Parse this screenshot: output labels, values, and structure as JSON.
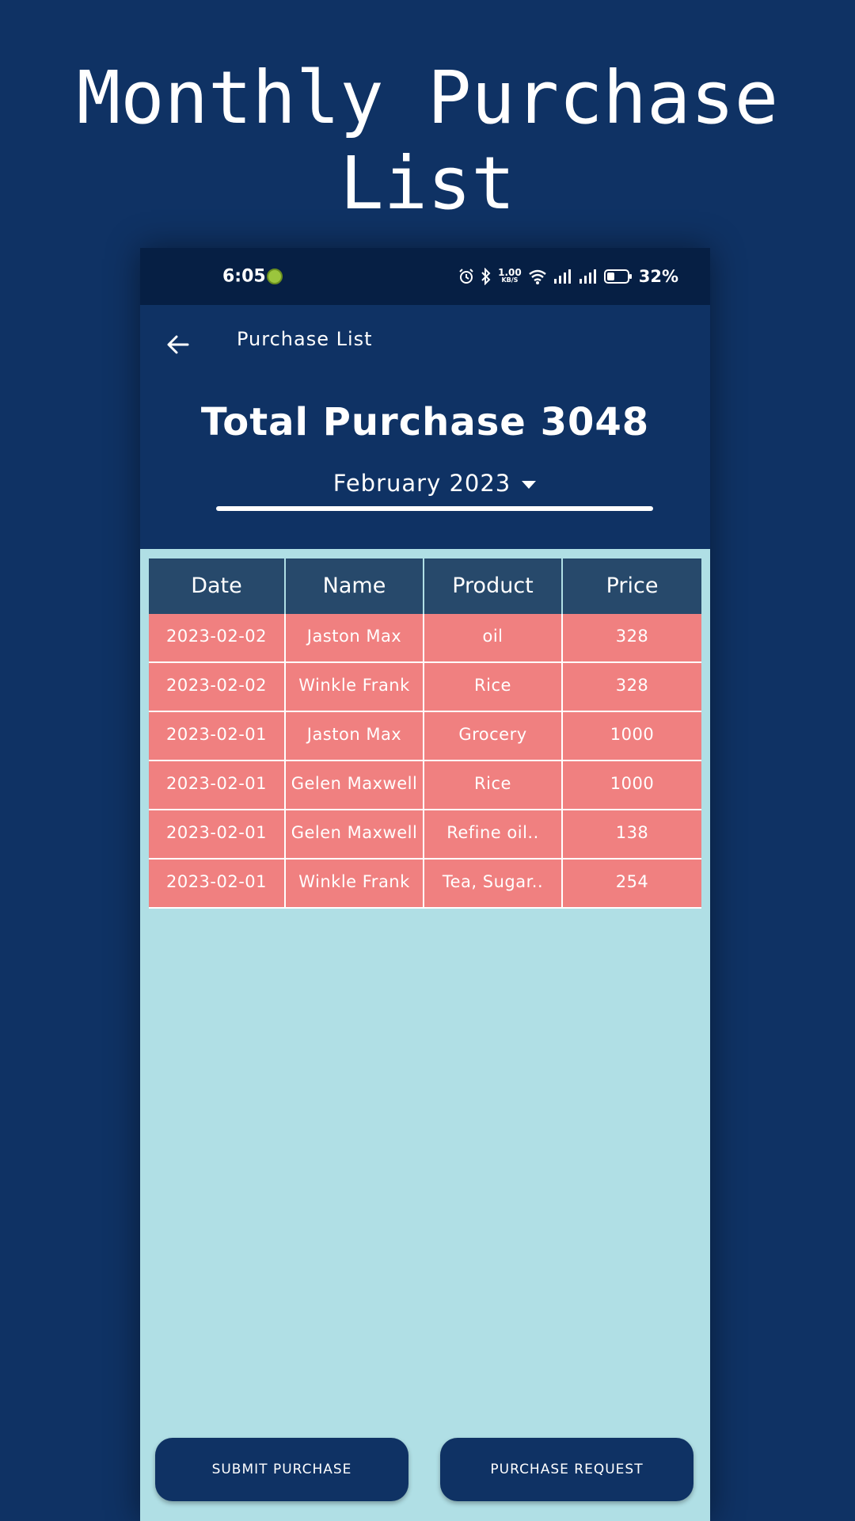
{
  "promo": {
    "title_line1": "Monthly Purchase",
    "title_line2": "List"
  },
  "status_bar": {
    "time": "6:05",
    "network_speed_top": "1.00",
    "network_speed_bottom": "KB/S",
    "battery": "32%",
    "icons": [
      "alarm-icon",
      "bluetooth-icon",
      "wifi-icon",
      "signal-icon",
      "signal-icon",
      "battery-icon"
    ]
  },
  "app_bar": {
    "title": "Purchase List",
    "back_icon": "arrow-left-icon"
  },
  "summary": {
    "total_title": "Total Purchase 3048",
    "month_selected": "February 2023"
  },
  "table": {
    "headers": [
      "Date",
      "Name",
      "Product",
      "Price"
    ],
    "rows": [
      [
        "2023-02-02",
        "Jaston Max",
        "oil",
        "328"
      ],
      [
        "2023-02-02",
        "Winkle Frank",
        "Rice",
        "328"
      ],
      [
        "2023-02-01",
        "Jaston Max",
        "Grocery",
        "1000"
      ],
      [
        "2023-02-01",
        "Gelen Maxwell",
        "Rice",
        "1000"
      ],
      [
        "2023-02-01",
        "Gelen Maxwell",
        "Refine oil..",
        "138"
      ],
      [
        "2023-02-01",
        "Winkle Frank",
        "Tea, Sugar..",
        "254"
      ]
    ]
  },
  "buttons": {
    "submit_purchase": "SUBMIT PURCHASE",
    "purchase_request": "PURCHASE REQUEST"
  },
  "colors": {
    "background": "#0f3264",
    "status_bar": "#061f44",
    "content_bg": "#b0dfe5",
    "table_header": "#27496b",
    "table_row": "#f08080",
    "text": "#ffffff"
  }
}
